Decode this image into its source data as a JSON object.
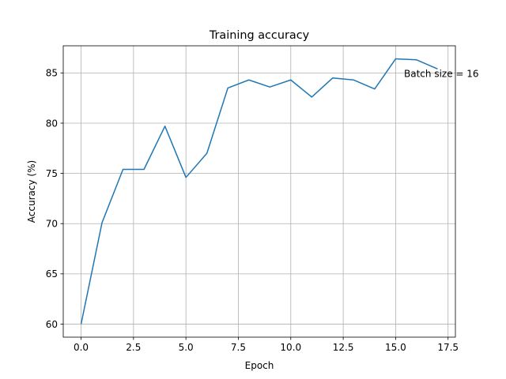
{
  "chart_data": {
    "type": "line",
    "title": "Training accuracy",
    "xlabel": "Epoch",
    "ylabel": "Accuracy (%)",
    "xlim": [
      -0.85,
      17.85
    ],
    "ylim": [
      58.7,
      87.7
    ],
    "xticks": [
      0.0,
      2.5,
      5.0,
      7.5,
      10.0,
      12.5,
      15.0,
      17.5
    ],
    "xtick_labels": [
      "0.0",
      "2.5",
      "5.0",
      "7.5",
      "10.0",
      "12.5",
      "15.0",
      "17.5"
    ],
    "yticks": [
      60,
      65,
      70,
      75,
      80,
      85
    ],
    "ytick_labels": [
      "60",
      "65",
      "70",
      "75",
      "80",
      "85"
    ],
    "grid": true,
    "series": [
      {
        "color": "#1f77b4",
        "x": [
          0,
          1,
          2,
          3,
          4,
          5,
          6,
          7,
          8,
          9,
          10,
          11,
          12,
          13,
          14,
          15,
          16,
          17
        ],
        "y": [
          60.0,
          70.1,
          75.4,
          75.4,
          79.7,
          74.6,
          77.0,
          83.5,
          84.3,
          83.6,
          84.3,
          82.6,
          84.5,
          84.3,
          83.4,
          86.4,
          86.3,
          85.4
        ]
      }
    ],
    "annotations": [
      {
        "text": "Batch size = 16",
        "x": 15.4,
        "y": 84.9
      }
    ]
  }
}
